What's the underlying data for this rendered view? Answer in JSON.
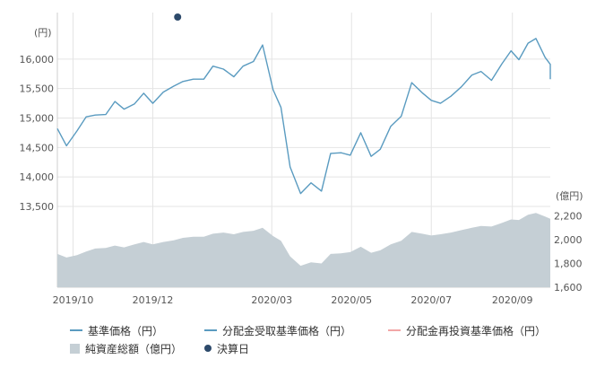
{
  "chart_data": {
    "type": "line",
    "price_axis": {
      "unit_label": "(円)",
      "ylim": [
        13500,
        16500
      ],
      "ticks": [
        13500,
        14000,
        14500,
        15000,
        15500,
        16000
      ],
      "tick_labels": [
        "13,500",
        "14,000",
        "14,500",
        "15,000",
        "15,500",
        "16,000"
      ]
    },
    "assets_axis": {
      "unit_label": "(億円)",
      "ylim": [
        1600,
        2400
      ],
      "ticks": [
        1600,
        1800,
        2000,
        2200
      ],
      "tick_labels": [
        "1,600",
        "1,800",
        "2,000",
        "2,200"
      ]
    },
    "x_axis": {
      "range": [
        "2019-09-19",
        "2020-09-30"
      ],
      "ticks": [
        {
          "date": "2019-10-01",
          "label": "2019/10"
        },
        {
          "date": "2019-12-01",
          "label": "2019/12"
        },
        {
          "date": "2020-03-01",
          "label": "2020/03"
        },
        {
          "date": "2020-05-01",
          "label": "2020/05"
        },
        {
          "date": "2020-07-01",
          "label": "2020/07"
        },
        {
          "date": "2020-09-01",
          "label": "2020/09"
        }
      ]
    },
    "grid": true,
    "series": [
      {
        "name": "基準価格（円）",
        "kind": "line",
        "color": "#5a9bc0",
        "points": [
          [
            "2019-09-19",
            14820
          ],
          [
            "2019-09-26",
            14530
          ],
          [
            "2019-10-04",
            14780
          ],
          [
            "2019-10-11",
            15020
          ],
          [
            "2019-10-18",
            15050
          ],
          [
            "2019-10-26",
            15060
          ],
          [
            "2019-11-02",
            15280
          ],
          [
            "2019-11-09",
            15150
          ],
          [
            "2019-11-17",
            15240
          ],
          [
            "2019-11-24",
            15420
          ],
          [
            "2019-12-01",
            15250
          ],
          [
            "2019-12-09",
            15440
          ],
          [
            "2019-12-17",
            15540
          ],
          [
            "2019-12-24",
            15620
          ],
          [
            "2020-01-01",
            15660
          ],
          [
            "2020-01-09",
            15660
          ],
          [
            "2020-01-16",
            15880
          ],
          [
            "2020-01-24",
            15830
          ],
          [
            "2020-02-01",
            15700
          ],
          [
            "2020-02-08",
            15880
          ],
          [
            "2020-02-16",
            15960
          ],
          [
            "2020-02-23",
            16240
          ],
          [
            "2020-03-02",
            15480
          ],
          [
            "2020-03-08",
            15180
          ],
          [
            "2020-03-15",
            14170
          ],
          [
            "2020-03-23",
            13720
          ],
          [
            "2020-03-31",
            13900
          ],
          [
            "2020-04-08",
            13760
          ],
          [
            "2020-04-15",
            14400
          ],
          [
            "2020-04-23",
            14410
          ],
          [
            "2020-04-30",
            14370
          ],
          [
            "2020-05-08",
            14750
          ],
          [
            "2020-05-16",
            14350
          ],
          [
            "2020-05-23",
            14470
          ],
          [
            "2020-05-31",
            14860
          ],
          [
            "2020-06-08",
            15030
          ],
          [
            "2020-06-16",
            15600
          ],
          [
            "2020-06-24",
            15430
          ],
          [
            "2020-07-01",
            15300
          ],
          [
            "2020-07-08",
            15250
          ],
          [
            "2020-07-16",
            15370
          ],
          [
            "2020-07-24",
            15530
          ],
          [
            "2020-08-01",
            15730
          ],
          [
            "2020-08-08",
            15790
          ],
          [
            "2020-08-16",
            15640
          ],
          [
            "2020-08-24",
            15920
          ],
          [
            "2020-08-31",
            16140
          ],
          [
            "2020-09-06",
            15990
          ],
          [
            "2020-09-13",
            16270
          ],
          [
            "2020-09-19",
            16350
          ],
          [
            "2020-09-26",
            16030
          ],
          [
            "2020-10-04",
            15910
          ],
          [
            "2020-10-11",
            15660
          ]
        ]
      },
      {
        "name": "分配金受取基準価格（円）",
        "kind": "line",
        "color": "#5a9bc0",
        "points": []
      },
      {
        "name": "分配金再投資基準価格（円）",
        "kind": "line",
        "color": "#f2a7a7",
        "points": []
      },
      {
        "name": "純資産総額（億円）",
        "kind": "area",
        "color": "#c5cfd5",
        "points": [
          [
            "2019-09-19",
            1880
          ],
          [
            "2019-09-26",
            1850
          ],
          [
            "2019-10-04",
            1870
          ],
          [
            "2019-10-11",
            1900
          ],
          [
            "2019-10-18",
            1925
          ],
          [
            "2019-10-26",
            1930
          ],
          [
            "2019-11-02",
            1950
          ],
          [
            "2019-11-09",
            1935
          ],
          [
            "2019-11-17",
            1960
          ],
          [
            "2019-11-24",
            1980
          ],
          [
            "2019-12-01",
            1960
          ],
          [
            "2019-12-09",
            1980
          ],
          [
            "2019-12-17",
            1995
          ],
          [
            "2019-12-24",
            2015
          ],
          [
            "2020-01-01",
            2025
          ],
          [
            "2020-01-09",
            2025
          ],
          [
            "2020-01-16",
            2050
          ],
          [
            "2020-01-24",
            2060
          ],
          [
            "2020-02-01",
            2045
          ],
          [
            "2020-02-08",
            2065
          ],
          [
            "2020-02-16",
            2075
          ],
          [
            "2020-02-23",
            2100
          ],
          [
            "2020-03-02",
            2030
          ],
          [
            "2020-03-08",
            1990
          ],
          [
            "2020-03-15",
            1860
          ],
          [
            "2020-03-23",
            1780
          ],
          [
            "2020-03-31",
            1810
          ],
          [
            "2020-04-08",
            1800
          ],
          [
            "2020-04-15",
            1880
          ],
          [
            "2020-04-23",
            1885
          ],
          [
            "2020-04-30",
            1895
          ],
          [
            "2020-05-08",
            1940
          ],
          [
            "2020-05-16",
            1890
          ],
          [
            "2020-05-23",
            1910
          ],
          [
            "2020-05-31",
            1960
          ],
          [
            "2020-06-08",
            1990
          ],
          [
            "2020-06-16",
            2065
          ],
          [
            "2020-06-24",
            2050
          ],
          [
            "2020-07-01",
            2035
          ],
          [
            "2020-07-08",
            2045
          ],
          [
            "2020-07-16",
            2060
          ],
          [
            "2020-07-24",
            2080
          ],
          [
            "2020-08-01",
            2100
          ],
          [
            "2020-08-08",
            2115
          ],
          [
            "2020-08-16",
            2110
          ],
          [
            "2020-08-24",
            2140
          ],
          [
            "2020-08-31",
            2170
          ],
          [
            "2020-09-06",
            2165
          ],
          [
            "2020-09-13",
            2210
          ],
          [
            "2020-09-19",
            2225
          ],
          [
            "2020-09-26",
            2195
          ],
          [
            "2020-10-04",
            2175
          ],
          [
            "2020-10-11",
            2150
          ]
        ]
      },
      {
        "name": "決算日",
        "kind": "marker",
        "color": "#2d4a6b",
        "points": [
          [
            "2019-12-20",
            null
          ]
        ]
      }
    ]
  }
}
